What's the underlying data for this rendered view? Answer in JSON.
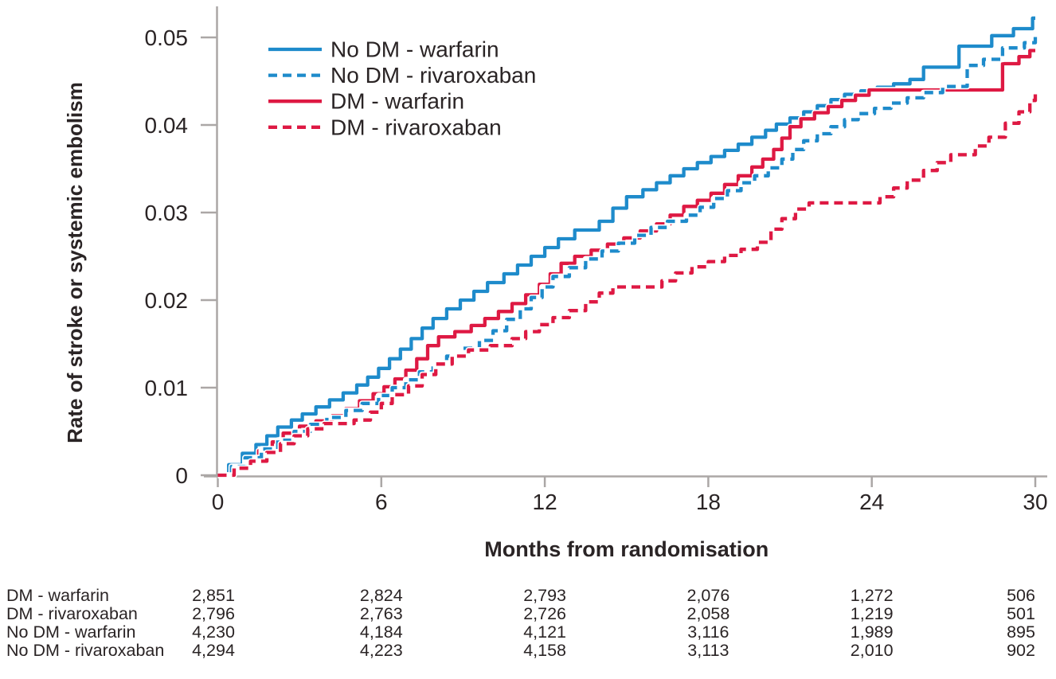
{
  "chart_data": {
    "type": "line",
    "subtype": "kaplan-meier-cumulative-incidence-step",
    "title": "",
    "xlabel": "Months from randomisation",
    "ylabel": "Rate of stroke or systemic embolism",
    "xlim": [
      0,
      30
    ],
    "ylim": [
      0,
      0.05
    ],
    "xticks": [
      0,
      6,
      12,
      18,
      24,
      30
    ],
    "xtick_labels": [
      "0",
      "6",
      "12",
      "18",
      "24",
      "30"
    ],
    "yticks": [
      0,
      0.01,
      0.02,
      0.03,
      0.04,
      0.05
    ],
    "ytick_labels": [
      "0",
      "0.01",
      "0.02",
      "0.03",
      "0.04",
      "0.05"
    ],
    "grid": false,
    "legend_position": "top-left-inside",
    "colors": {
      "blue": "#1E8BCB",
      "red": "#DE1943",
      "text": "#2A2425",
      "axis": "#ABA7A6"
    },
    "series": [
      {
        "name": "No DM - warfarin",
        "color_key": "blue",
        "style": "solid",
        "points": [
          [
            0,
            0
          ],
          [
            0.4,
            0.0012
          ],
          [
            0.9,
            0.0025
          ],
          [
            1.4,
            0.0035
          ],
          [
            1.8,
            0.0045
          ],
          [
            2.2,
            0.0055
          ],
          [
            2.7,
            0.0063
          ],
          [
            3.1,
            0.007
          ],
          [
            3.6,
            0.0078
          ],
          [
            4.1,
            0.0086
          ],
          [
            4.6,
            0.0094
          ],
          [
            5.1,
            0.0103
          ],
          [
            5.5,
            0.0112
          ],
          [
            5.9,
            0.0122
          ],
          [
            6.3,
            0.0133
          ],
          [
            6.7,
            0.0144
          ],
          [
            7.1,
            0.0156
          ],
          [
            7.5,
            0.0168
          ],
          [
            7.9,
            0.0179
          ],
          [
            8.4,
            0.019
          ],
          [
            8.9,
            0.02
          ],
          [
            9.4,
            0.021
          ],
          [
            9.9,
            0.022
          ],
          [
            10.5,
            0.023
          ],
          [
            11,
            0.024
          ],
          [
            11.5,
            0.025
          ],
          [
            12,
            0.026
          ],
          [
            12.5,
            0.027
          ],
          [
            13.1,
            0.028
          ],
          [
            14,
            0.029
          ],
          [
            14.5,
            0.0305
          ],
          [
            15,
            0.0318
          ],
          [
            15.6,
            0.0326
          ],
          [
            16.1,
            0.0334
          ],
          [
            16.6,
            0.0342
          ],
          [
            17.1,
            0.035
          ],
          [
            17.6,
            0.0357
          ],
          [
            18.1,
            0.0364
          ],
          [
            18.6,
            0.0371
          ],
          [
            19.1,
            0.0378
          ],
          [
            19.6,
            0.0386
          ],
          [
            20.1,
            0.0394
          ],
          [
            20.5,
            0.0401
          ],
          [
            21,
            0.0408
          ],
          [
            21.5,
            0.0415
          ],
          [
            22,
            0.0422
          ],
          [
            22.5,
            0.0429
          ],
          [
            23,
            0.0435
          ],
          [
            23.6,
            0.0439
          ],
          [
            24.2,
            0.0443
          ],
          [
            24.8,
            0.0447
          ],
          [
            25.4,
            0.0452
          ],
          [
            25.9,
            0.0466
          ],
          [
            27.2,
            0.049
          ],
          [
            28.4,
            0.0502
          ],
          [
            29.2,
            0.051
          ],
          [
            29.9,
            0.0522
          ],
          [
            30,
            0.0522
          ]
        ]
      },
      {
        "name": "No DM - rivaroxaban",
        "color_key": "blue",
        "style": "dashed",
        "points": [
          [
            0,
            0
          ],
          [
            0.5,
            0.001
          ],
          [
            1,
            0.002
          ],
          [
            1.6,
            0.003
          ],
          [
            2.2,
            0.004
          ],
          [
            2.8,
            0.005
          ],
          [
            3.4,
            0.0058
          ],
          [
            4,
            0.0066
          ],
          [
            4.7,
            0.0074
          ],
          [
            5.3,
            0.0082
          ],
          [
            5.9,
            0.0091
          ],
          [
            6.4,
            0.01
          ],
          [
            6.9,
            0.0109
          ],
          [
            7.4,
            0.0118
          ],
          [
            7.9,
            0.0128
          ],
          [
            8.4,
            0.0136
          ],
          [
            9,
            0.0145
          ],
          [
            9.6,
            0.0154
          ],
          [
            10.1,
            0.0165
          ],
          [
            10.6,
            0.0178
          ],
          [
            11.1,
            0.019
          ],
          [
            11.5,
            0.0203
          ],
          [
            11.9,
            0.0215
          ],
          [
            12.3,
            0.0227
          ],
          [
            12.9,
            0.0237
          ],
          [
            13.5,
            0.0247
          ],
          [
            14.1,
            0.0256
          ],
          [
            14.7,
            0.0265
          ],
          [
            15.3,
            0.0274
          ],
          [
            15.9,
            0.0283
          ],
          [
            16.5,
            0.029
          ],
          [
            17.2,
            0.0297
          ],
          [
            17.7,
            0.0306
          ],
          [
            18.2,
            0.0316
          ],
          [
            18.7,
            0.0325
          ],
          [
            19.2,
            0.0334
          ],
          [
            19.7,
            0.0342
          ],
          [
            20.2,
            0.0351
          ],
          [
            20.7,
            0.0361
          ],
          [
            21.1,
            0.0372
          ],
          [
            21.5,
            0.0382
          ],
          [
            22,
            0.039
          ],
          [
            22.5,
            0.0398
          ],
          [
            23,
            0.0406
          ],
          [
            23.5,
            0.0413
          ],
          [
            24.1,
            0.0419
          ],
          [
            24.7,
            0.0425
          ],
          [
            25.3,
            0.0431
          ],
          [
            25.9,
            0.0437
          ],
          [
            26.6,
            0.0444
          ],
          [
            27.5,
            0.0468
          ],
          [
            28.1,
            0.0475
          ],
          [
            28.8,
            0.0488
          ],
          [
            29.6,
            0.0494
          ],
          [
            30,
            0.0502
          ]
        ]
      },
      {
        "name": "DM - warfarin",
        "color_key": "red",
        "style": "solid",
        "points": [
          [
            0,
            0
          ],
          [
            0.5,
            0.0009
          ],
          [
            1,
            0.0018
          ],
          [
            1.5,
            0.0028
          ],
          [
            2,
            0.0038
          ],
          [
            2.4,
            0.0048
          ],
          [
            3,
            0.0056
          ],
          [
            3.6,
            0.0062
          ],
          [
            4.2,
            0.0068
          ],
          [
            4.7,
            0.0076
          ],
          [
            5.2,
            0.0085
          ],
          [
            5.7,
            0.0093
          ],
          [
            6.1,
            0.0101
          ],
          [
            6.5,
            0.011
          ],
          [
            6.9,
            0.012
          ],
          [
            7.3,
            0.0133
          ],
          [
            7.7,
            0.0148
          ],
          [
            8.1,
            0.0158
          ],
          [
            8.7,
            0.0164
          ],
          [
            9.3,
            0.0171
          ],
          [
            9.8,
            0.0179
          ],
          [
            10.3,
            0.0187
          ],
          [
            10.8,
            0.0196
          ],
          [
            11.3,
            0.0206
          ],
          [
            11.8,
            0.0218
          ],
          [
            12.2,
            0.023
          ],
          [
            12.6,
            0.0242
          ],
          [
            13.1,
            0.025
          ],
          [
            13.7,
            0.0257
          ],
          [
            14.3,
            0.0264
          ],
          [
            14.9,
            0.0271
          ],
          [
            15.5,
            0.0279
          ],
          [
            16.1,
            0.0287
          ],
          [
            16.6,
            0.0297
          ],
          [
            17.1,
            0.0307
          ],
          [
            17.6,
            0.0314
          ],
          [
            18.1,
            0.0322
          ],
          [
            18.6,
            0.0332
          ],
          [
            19.1,
            0.0342
          ],
          [
            19.6,
            0.0352
          ],
          [
            20,
            0.0361
          ],
          [
            20.4,
            0.0372
          ],
          [
            20.7,
            0.0385
          ],
          [
            21,
            0.0398
          ],
          [
            21.4,
            0.0407
          ],
          [
            21.9,
            0.0414
          ],
          [
            22.4,
            0.0421
          ],
          [
            22.9,
            0.0428
          ],
          [
            23.4,
            0.0434
          ],
          [
            23.9,
            0.044
          ],
          [
            28.8,
            0.047
          ],
          [
            29.4,
            0.0478
          ],
          [
            29.8,
            0.0485
          ],
          [
            30,
            0.0485
          ]
        ]
      },
      {
        "name": "DM - rivaroxaban",
        "color_key": "red",
        "style": "dashed",
        "points": [
          [
            0,
            0
          ],
          [
            0.6,
            0.0008
          ],
          [
            1.2,
            0.0016
          ],
          [
            1.8,
            0.0026
          ],
          [
            2.3,
            0.0036
          ],
          [
            2.8,
            0.0045
          ],
          [
            3.3,
            0.0053
          ],
          [
            3.9,
            0.0059
          ],
          [
            5,
            0.0063
          ],
          [
            5.6,
            0.0072
          ],
          [
            6,
            0.0082
          ],
          [
            6.4,
            0.0092
          ],
          [
            7,
            0.0102
          ],
          [
            7.5,
            0.0115
          ],
          [
            8,
            0.0127
          ],
          [
            8.6,
            0.0136
          ],
          [
            9.2,
            0.0143
          ],
          [
            10,
            0.0148
          ],
          [
            10.8,
            0.0156
          ],
          [
            11.3,
            0.0164
          ],
          [
            11.8,
            0.0172
          ],
          [
            12.3,
            0.018
          ],
          [
            12.9,
            0.0188
          ],
          [
            13.5,
            0.0198
          ],
          [
            14,
            0.0208
          ],
          [
            14.5,
            0.0215
          ],
          [
            16.3,
            0.0222
          ],
          [
            16.8,
            0.0231
          ],
          [
            17.4,
            0.0238
          ],
          [
            18,
            0.0244
          ],
          [
            18.6,
            0.0251
          ],
          [
            19.2,
            0.0258
          ],
          [
            19.8,
            0.0266
          ],
          [
            20.3,
            0.0281
          ],
          [
            20.7,
            0.0293
          ],
          [
            21.2,
            0.0304
          ],
          [
            21.7,
            0.0311
          ],
          [
            24.3,
            0.0318
          ],
          [
            24.8,
            0.0328
          ],
          [
            25.3,
            0.0337
          ],
          [
            25.9,
            0.0348
          ],
          [
            26.4,
            0.0357
          ],
          [
            26.9,
            0.0366
          ],
          [
            27.8,
            0.0376
          ],
          [
            28.3,
            0.0386
          ],
          [
            28.9,
            0.0402
          ],
          [
            29.4,
            0.0415
          ],
          [
            29.8,
            0.0428
          ],
          [
            30,
            0.0437
          ]
        ]
      }
    ]
  },
  "risk_table": {
    "rows": [
      {
        "label": "DM - warfarin",
        "values": [
          "2,851",
          "2,824",
          "2,793",
          "2,076",
          "1,272",
          "506"
        ]
      },
      {
        "label": "DM - rivaroxaban",
        "values": [
          "2,796",
          "2,763",
          "2,726",
          "2,058",
          "1,219",
          "501"
        ]
      },
      {
        "label": "No DM - warfarin",
        "values": [
          "4,230",
          "4,184",
          "4,121",
          "3,116",
          "1,989",
          "895"
        ]
      },
      {
        "label": "No DM - rivaroxaban",
        "values": [
          "4,294",
          "4,223",
          "4,158",
          "3,113",
          "2,010",
          "902"
        ]
      }
    ]
  }
}
